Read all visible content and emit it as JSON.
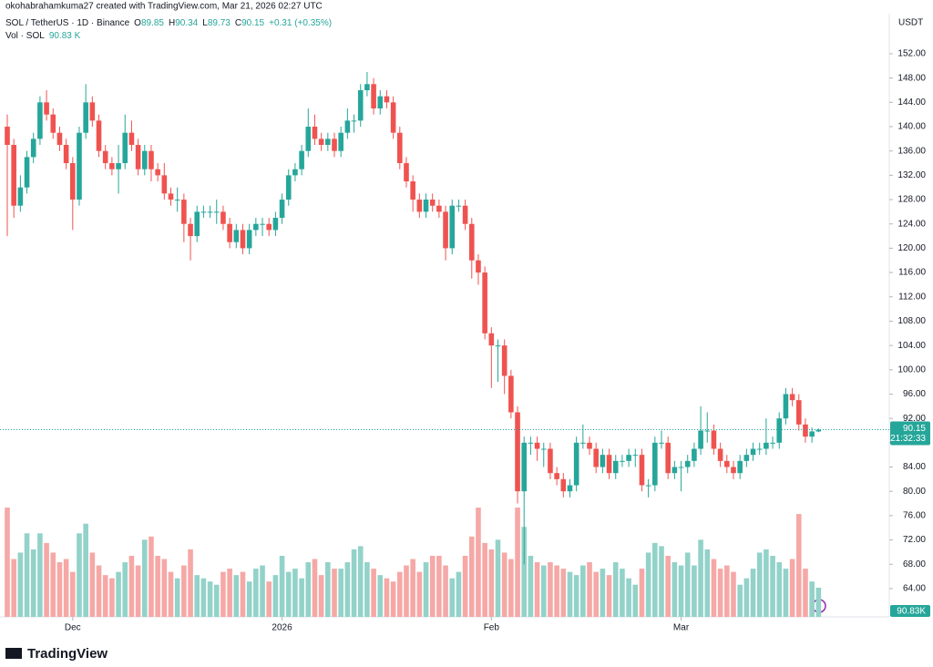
{
  "chart_data": {
    "type": "candlestick",
    "credit": "okohabrahamkuma27 created with TradingView.com, Mar 21, 2026 02:27 UTC",
    "symbol": "SOL / TetherUS · 1D · Binance",
    "ohlc_letters": [
      "O",
      "H",
      "L",
      "C"
    ],
    "change": "+0.31 (+0.35%)",
    "volume_title": "Vol · SOL",
    "volume_label": "90.83 K",
    "volume_axis_label": "90.83K",
    "countdown": "21:32:33",
    "currency": "USDT",
    "brand": "TradingView",
    "up_color": "#26a69a",
    "down_color": "#ef5350",
    "up_volume_color": "#92d2c9",
    "down_volume_color": "#f5a8a6",
    "ylim": [
      60,
      156
    ],
    "yticks": [
      {
        "value": 64,
        "label": "64.00"
      },
      {
        "value": 68,
        "label": "68.00"
      },
      {
        "value": 72,
        "label": "72.00"
      },
      {
        "value": 76,
        "label": "76.00"
      },
      {
        "value": 80,
        "label": "80.00"
      },
      {
        "value": 84,
        "label": "84.00"
      },
      {
        "value": 88,
        "label": "88.00"
      },
      {
        "value": 92,
        "label": "92.00"
      },
      {
        "value": 96,
        "label": "96.00"
      },
      {
        "value": 100,
        "label": "100.00"
      },
      {
        "value": 104,
        "label": "104.00"
      },
      {
        "value": 108,
        "label": "108.00"
      },
      {
        "value": 112,
        "label": "112.00"
      },
      {
        "value": 116,
        "label": "116.00"
      },
      {
        "value": 120,
        "label": "120.00"
      },
      {
        "value": 124,
        "label": "124.00"
      },
      {
        "value": 128,
        "label": "128.00"
      },
      {
        "value": 132,
        "label": "132.00"
      },
      {
        "value": 136,
        "label": "136.00"
      },
      {
        "value": 140,
        "label": "140.00"
      },
      {
        "value": 144,
        "label": "144.00"
      },
      {
        "value": 148,
        "label": "148.00"
      },
      {
        "value": 152,
        "label": "152.00"
      }
    ],
    "xticks": [
      {
        "value": 10,
        "label": "Dec"
      },
      {
        "value": 42,
        "label": "2026"
      },
      {
        "value": 74,
        "label": "Feb"
      },
      {
        "value": 103,
        "label": "Mar"
      }
    ],
    "volume_ylim": [
      0,
      360
    ],
    "candles": [
      [
        140,
        142,
        122,
        137
      ],
      [
        137,
        138,
        125,
        127
      ],
      [
        127,
        132,
        126,
        130
      ],
      [
        130,
        136,
        129,
        135
      ],
      [
        135,
        139,
        134,
        138
      ],
      [
        138,
        145,
        137,
        144
      ],
      [
        144,
        146,
        141,
        142
      ],
      [
        142,
        143,
        138,
        139
      ],
      [
        139,
        140,
        136,
        137
      ],
      [
        137,
        138,
        133,
        134
      ],
      [
        134,
        135,
        123,
        128
      ],
      [
        128,
        140,
        127,
        139
      ],
      [
        139,
        147,
        138,
        144
      ],
      [
        144,
        145,
        140,
        141
      ],
      [
        141,
        142,
        135,
        136
      ],
      [
        136,
        137,
        133,
        134
      ],
      [
        134,
        135,
        132,
        133
      ],
      [
        133,
        137,
        129,
        134
      ],
      [
        134,
        142,
        133,
        139
      ],
      [
        139,
        141,
        136,
        137
      ],
      [
        137,
        138,
        132,
        133
      ],
      [
        133,
        137,
        132,
        136
      ],
      [
        136,
        137,
        131,
        133
      ],
      [
        133,
        134,
        131,
        132
      ],
      [
        132,
        134,
        128,
        129
      ],
      [
        129,
        130,
        127,
        128
      ],
      [
        128,
        130,
        126,
        128
      ],
      [
        128,
        129,
        121,
        124
      ],
      [
        124,
        125,
        118,
        122
      ],
      [
        122,
        127,
        121,
        126
      ],
      [
        126,
        127,
        125,
        126
      ],
      [
        126,
        127,
        125,
        126
      ],
      [
        126,
        128,
        124,
        126
      ],
      [
        126,
        127,
        123,
        124
      ],
      [
        124,
        125,
        120,
        121
      ],
      [
        121,
        124,
        120,
        123
      ],
      [
        123,
        124,
        119,
        120
      ],
      [
        120,
        124,
        119,
        123
      ],
      [
        123,
        125,
        122,
        124
      ],
      [
        124,
        125,
        122,
        124
      ],
      [
        124,
        125,
        122,
        123
      ],
      [
        123,
        126,
        122,
        125
      ],
      [
        125,
        129,
        124,
        128
      ],
      [
        128,
        133,
        127,
        132
      ],
      [
        132,
        134,
        131,
        133
      ],
      [
        133,
        137,
        132,
        136
      ],
      [
        136,
        143,
        135,
        140
      ],
      [
        140,
        142,
        137,
        138
      ],
      [
        138,
        139,
        136,
        137
      ],
      [
        137,
        139,
        136,
        138
      ],
      [
        138,
        139,
        135,
        136
      ],
      [
        136,
        140,
        135,
        139
      ],
      [
        139,
        143,
        138,
        141
      ],
      [
        141,
        142,
        139,
        141
      ],
      [
        141,
        147,
        140,
        146
      ],
      [
        146,
        149,
        145,
        147
      ],
      [
        147,
        148,
        142,
        143
      ],
      [
        143,
        146,
        142,
        145
      ],
      [
        145,
        146,
        143,
        144
      ],
      [
        144,
        145,
        138,
        139
      ],
      [
        139,
        140,
        133,
        134
      ],
      [
        134,
        135,
        130,
        131
      ],
      [
        131,
        132,
        126,
        128
      ],
      [
        128,
        129,
        125,
        126
      ],
      [
        126,
        129,
        125,
        128
      ],
      [
        128,
        129,
        126,
        127
      ],
      [
        127,
        128,
        125,
        126
      ],
      [
        126,
        127,
        118,
        120
      ],
      [
        120,
        128,
        119,
        127
      ],
      [
        127,
        128,
        126,
        127
      ],
      [
        127,
        128,
        123,
        124
      ],
      [
        124,
        125,
        115,
        118
      ],
      [
        118,
        119,
        114,
        116
      ],
      [
        116,
        117,
        105,
        106
      ],
      [
        106,
        107,
        97,
        104
      ],
      [
        104,
        105,
        98,
        104
      ],
      [
        104,
        105,
        96,
        99
      ],
      [
        99,
        100,
        92,
        93
      ],
      [
        93,
        94,
        78,
        80
      ],
      [
        80,
        89,
        68,
        88
      ],
      [
        88,
        89,
        86,
        88
      ],
      [
        88,
        89,
        85,
        87
      ],
      [
        87,
        88,
        84,
        87
      ],
      [
        87,
        88,
        82,
        83
      ],
      [
        83,
        84,
        81,
        82
      ],
      [
        82,
        83,
        79,
        80
      ],
      [
        80,
        82,
        79,
        81
      ],
      [
        81,
        89,
        80,
        88
      ],
      [
        88,
        91,
        87,
        88
      ],
      [
        88,
        89,
        86,
        87
      ],
      [
        87,
        88,
        83,
        84
      ],
      [
        84,
        87,
        83,
        86
      ],
      [
        86,
        87,
        82,
        83
      ],
      [
        83,
        86,
        82,
        85
      ],
      [
        85,
        86,
        84,
        85
      ],
      [
        85,
        87,
        84,
        86
      ],
      [
        86,
        87,
        84,
        86
      ],
      [
        86,
        87,
        80,
        81
      ],
      [
        81,
        82,
        79,
        81
      ],
      [
        81,
        89,
        80,
        88
      ],
      [
        88,
        90,
        87,
        88
      ],
      [
        88,
        89,
        82,
        83
      ],
      [
        83,
        85,
        82,
        84
      ],
      [
        84,
        85,
        80,
        84
      ],
      [
        84,
        86,
        83,
        85
      ],
      [
        85,
        88,
        84,
        87
      ],
      [
        87,
        94,
        86,
        90
      ],
      [
        90,
        93,
        88,
        90
      ],
      [
        90,
        91,
        86,
        87
      ],
      [
        87,
        88,
        84,
        85
      ],
      [
        85,
        86,
        83,
        84
      ],
      [
        84,
        85,
        82,
        83
      ],
      [
        83,
        86,
        82,
        85
      ],
      [
        85,
        87,
        84,
        86
      ],
      [
        86,
        88,
        85,
        87
      ],
      [
        87,
        88,
        86,
        87
      ],
      [
        87,
        92,
        86,
        88
      ],
      [
        88,
        89,
        87,
        88
      ],
      [
        88,
        93,
        87,
        92
      ],
      [
        92,
        97,
        91,
        96
      ],
      [
        96,
        97,
        94,
        95
      ],
      [
        95,
        96,
        90,
        91
      ],
      [
        91,
        92,
        88,
        89
      ],
      [
        89,
        90.5,
        88,
        89.85
      ],
      [
        89.85,
        90.34,
        89.73,
        90.15
      ]
    ],
    "volumes": [
      340,
      180,
      200,
      260,
      210,
      260,
      230,
      200,
      170,
      180,
      140,
      260,
      290,
      200,
      160,
      130,
      120,
      140,
      170,
      190,
      160,
      240,
      250,
      190,
      180,
      140,
      120,
      160,
      210,
      130,
      120,
      110,
      100,
      140,
      150,
      130,
      140,
      110,
      150,
      160,
      110,
      130,
      190,
      140,
      150,
      120,
      170,
      180,
      130,
      170,
      150,
      150,
      170,
      210,
      220,
      170,
      150,
      130,
      120,
      110,
      140,
      160,
      180,
      140,
      170,
      190,
      190,
      160,
      120,
      140,
      190,
      250,
      340,
      230,
      210,
      240,
      200,
      180,
      340,
      280,
      190,
      170,
      160,
      170,
      160,
      150,
      140,
      130,
      160,
      170,
      140,
      150,
      130,
      170,
      150,
      120,
      100,
      150,
      200,
      230,
      220,
      190,
      170,
      160,
      200,
      160,
      240,
      210,
      180,
      150,
      160,
      140,
      100,
      120,
      150,
      200,
      210,
      190,
      170,
      150,
      180,
      320,
      150,
      110,
      90.83
    ]
  }
}
